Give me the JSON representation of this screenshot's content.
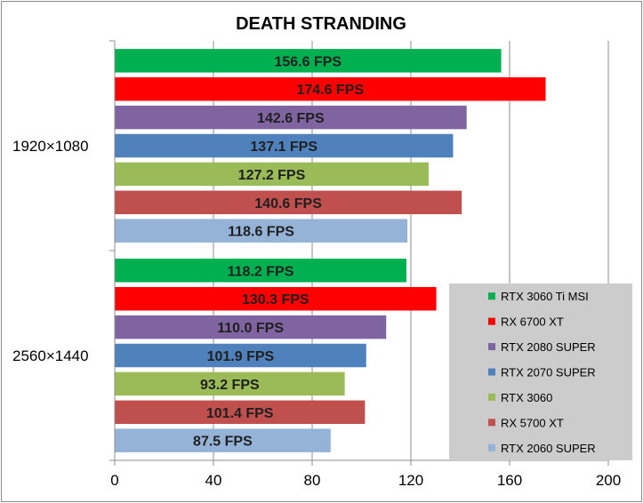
{
  "chart_data": {
    "type": "bar",
    "orientation": "horizontal",
    "title": "DEATH STRANDING",
    "xlabel": "",
    "ylabel": "",
    "xlim": [
      0,
      200
    ],
    "x_ticks": [
      "0",
      "40",
      "80",
      "120",
      "160",
      "200"
    ],
    "x_tick_values": [
      0,
      40,
      80,
      120,
      160,
      200
    ],
    "grid": "vertical",
    "legend_position": "right",
    "value_suffix": " FPS",
    "categories": [
      "1920×1080",
      "2560×1440"
    ],
    "series": [
      {
        "name": "RTX 3060 Ti MSI",
        "color": "#00b050",
        "values": [
          156.6,
          118.2
        ]
      },
      {
        "name": "RX 6700 XT",
        "color": "#ff0000",
        "values": [
          174.6,
          130.3
        ]
      },
      {
        "name": "RTX 2080 SUPER",
        "color": "#8064a2",
        "values": [
          142.6,
          110.0
        ]
      },
      {
        "name": "RTX 2070 SUPER",
        "color": "#4f81bd",
        "values": [
          137.1,
          101.9
        ]
      },
      {
        "name": "RTX 3060",
        "color": "#9bbb59",
        "values": [
          127.2,
          93.2
        ]
      },
      {
        "name": "RX 5700 XT",
        "color": "#c0504d",
        "values": [
          140.6,
          101.4
        ]
      },
      {
        "name": "RTX 2060 SUPER",
        "color": "#95b3d7",
        "values": [
          118.6,
          87.5
        ]
      }
    ]
  }
}
